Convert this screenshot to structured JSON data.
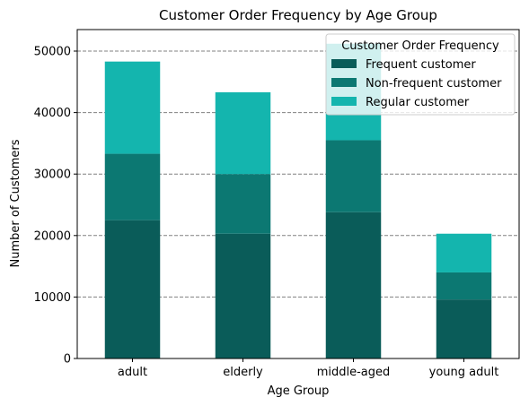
{
  "chart_data": {
    "type": "bar",
    "stacked": true,
    "title": "Customer Order Frequency by Age Group",
    "xlabel": "Age Group",
    "ylabel": "Number of Customers",
    "categories": [
      "adult",
      "elderly",
      "middle-aged",
      "young adult"
    ],
    "ylim": [
      0,
      53500
    ],
    "yticks": [
      0,
      10000,
      20000,
      30000,
      40000,
      50000
    ],
    "ytick_labels": [
      "0",
      "10000",
      "20000",
      "30000",
      "40000",
      "50000"
    ],
    "grid": true,
    "grid_axis": "y",
    "grid_style": "dashed",
    "series": [
      {
        "name": "Frequent customer",
        "color": "#0a5c59",
        "values": [
          22500,
          20300,
          23800,
          9600
        ]
      },
      {
        "name": "Non-frequent customer",
        "color": "#0c7872",
        "values": [
          10800,
          9700,
          11700,
          4400
        ]
      },
      {
        "name": "Regular customer",
        "color": "#14b5ae",
        "values": [
          15000,
          13300,
          15700,
          6300
        ]
      }
    ],
    "legend": {
      "title": "Customer Order Frequency",
      "placement": "top-right"
    }
  }
}
